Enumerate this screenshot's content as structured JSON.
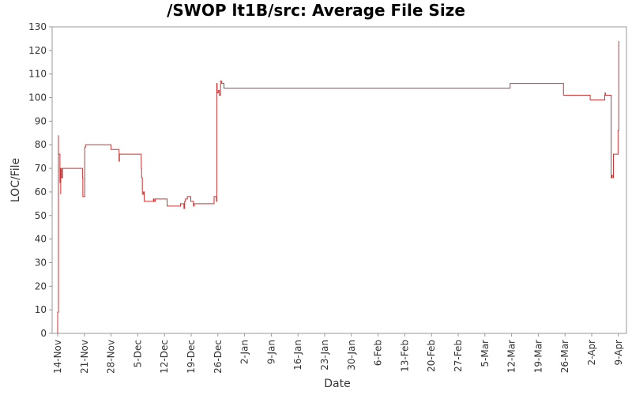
{
  "chart_data": {
    "type": "line",
    "title": "/SWOP lt1B/src: Average File Size",
    "xlabel": "Date",
    "ylabel": "LOC/File",
    "ylim": [
      0,
      130
    ],
    "yticks": [
      0,
      10,
      20,
      30,
      40,
      50,
      60,
      70,
      80,
      90,
      100,
      110,
      120,
      130
    ],
    "xticks": [
      "14-Nov",
      "21-Nov",
      "28-Nov",
      "5-Dec",
      "12-Dec",
      "19-Dec",
      "26-Dec",
      "2-Jan",
      "9-Jan",
      "16-Jan",
      "23-Jan",
      "30-Jan",
      "6-Feb",
      "13-Feb",
      "20-Feb",
      "27-Feb",
      "5-Mar",
      "12-Mar",
      "19-Mar",
      "26-Mar",
      "2-Apr",
      "9-Apr"
    ],
    "grid": false,
    "legend": "none",
    "line_color": "#cc3333",
    "series": [
      {
        "values": [
          [
            0.0,
            0
          ],
          [
            0.0,
            9
          ],
          [
            0.2,
            84
          ],
          [
            0.2,
            76
          ],
          [
            0.6,
            76
          ],
          [
            0.6,
            64
          ],
          [
            0.8,
            59
          ],
          [
            0.8,
            70
          ],
          [
            1.0,
            70
          ],
          [
            1.0,
            66
          ],
          [
            1.3,
            66
          ],
          [
            1.3,
            70
          ],
          [
            6.4,
            70
          ],
          [
            6.5,
            66
          ],
          [
            6.6,
            58
          ],
          [
            7.0,
            58
          ],
          [
            7.1,
            79
          ],
          [
            7.3,
            80
          ],
          [
            14.0,
            80
          ],
          [
            14.0,
            78
          ],
          [
            16.0,
            78
          ],
          [
            16.1,
            73
          ],
          [
            16.2,
            76
          ],
          [
            21.8,
            76
          ],
          [
            21.9,
            70
          ],
          [
            22.0,
            66
          ],
          [
            22.2,
            59
          ],
          [
            22.4,
            59
          ],
          [
            22.5,
            60
          ],
          [
            22.7,
            56
          ],
          [
            25.0,
            56
          ],
          [
            25.1,
            57
          ],
          [
            25.3,
            56
          ],
          [
            25.6,
            57
          ],
          [
            28.5,
            57
          ],
          [
            28.7,
            54
          ],
          [
            32.0,
            54
          ],
          [
            32.2,
            55
          ],
          [
            33.0,
            55
          ],
          [
            33.1,
            53
          ],
          [
            33.3,
            56
          ],
          [
            33.5,
            57
          ],
          [
            34.0,
            58
          ],
          [
            34.8,
            58
          ],
          [
            34.9,
            56
          ],
          [
            35.5,
            56
          ],
          [
            35.6,
            54
          ],
          [
            35.8,
            55
          ],
          [
            41.0,
            55
          ],
          [
            41.0,
            58
          ],
          [
            41.5,
            58
          ],
          [
            41.6,
            56
          ],
          [
            41.7,
            106
          ],
          [
            41.8,
            102
          ],
          [
            42.0,
            102
          ],
          [
            42.1,
            103
          ],
          [
            42.3,
            103
          ],
          [
            42.4,
            101
          ],
          [
            42.6,
            101
          ],
          [
            42.7,
            107
          ],
          [
            43.0,
            106
          ],
          [
            43.4,
            106
          ],
          [
            43.6,
            104
          ],
          [
            118.5,
            104
          ],
          [
            118.6,
            106
          ],
          [
            132.5,
            106
          ],
          [
            132.6,
            101
          ],
          [
            139.5,
            101
          ],
          [
            139.6,
            99
          ],
          [
            143.3,
            99
          ],
          [
            143.4,
            101
          ],
          [
            143.5,
            102
          ],
          [
            143.6,
            101
          ],
          [
            145.0,
            101
          ],
          [
            145.1,
            66
          ],
          [
            145.3,
            67
          ],
          [
            145.6,
            66
          ],
          [
            145.7,
            76
          ],
          [
            146.8,
            76
          ],
          [
            146.9,
            86
          ],
          [
            147.0,
            86
          ],
          [
            147.1,
            124
          ]
        ]
      }
    ]
  }
}
